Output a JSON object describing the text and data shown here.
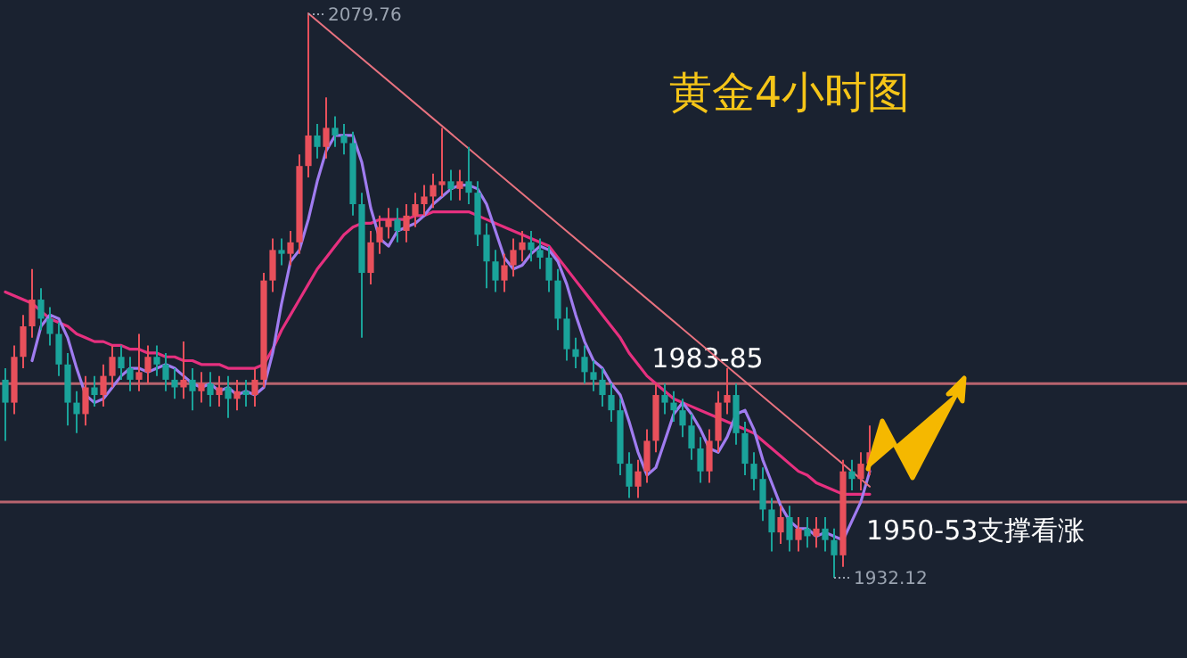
{
  "chart_data": {
    "type": "candlestick",
    "title": "黄金4小时图",
    "categories": [
      null,
      null,
      null,
      null,
      null,
      null,
      null,
      null,
      null,
      null,
      null,
      null,
      null,
      null,
      null,
      null,
      null,
      null,
      null,
      null,
      null,
      null,
      null,
      null,
      null,
      null,
      null,
      null,
      null,
      null,
      null,
      null,
      null,
      null,
      null,
      null,
      null,
      null,
      null,
      null,
      null,
      null,
      null,
      null,
      null,
      null,
      null,
      null,
      null,
      null,
      null,
      null,
      null,
      null,
      null,
      null,
      null,
      null,
      null,
      null,
      null,
      null,
      null,
      null,
      null,
      null,
      null,
      null,
      null,
      null,
      null,
      null,
      null,
      null,
      null,
      null,
      null,
      null,
      null,
      null,
      null,
      null,
      null,
      null,
      null,
      null,
      null,
      null,
      null,
      null,
      null,
      null,
      null,
      null,
      null,
      null,
      null,
      null
    ],
    "ohlc": [
      [
        1984,
        1987,
        1968,
        1978
      ],
      [
        1978,
        1993,
        1975,
        1990
      ],
      [
        1990,
        2001,
        1987,
        1998
      ],
      [
        1998,
        2013,
        1995,
        2005
      ],
      [
        2005,
        2008,
        1997,
        2000
      ],
      [
        2000,
        2003,
        1993,
        1996
      ],
      [
        1996,
        1999,
        1985,
        1988
      ],
      [
        1988,
        1991,
        1972,
        1978
      ],
      [
        1978,
        1981,
        1970,
        1975
      ],
      [
        1975,
        1985,
        1972,
        1982
      ],
      [
        1982,
        1985,
        1977,
        1980
      ],
      [
        1980,
        1988,
        1977,
        1985
      ],
      [
        1985,
        1993,
        1982,
        1990
      ],
      [
        1990,
        1993,
        1984,
        1987
      ],
      [
        1987,
        1990,
        1981,
        1984
      ],
      [
        1984,
        1996,
        1981,
        1986
      ],
      [
        1986,
        1993,
        1983,
        1990
      ],
      [
        1990,
        1993,
        1985,
        1988
      ],
      [
        1988,
        1991,
        1981,
        1984
      ],
      [
        1984,
        1987,
        1979,
        1982
      ],
      [
        1982,
        1994,
        1979,
        1984
      ],
      [
        1984,
        1987,
        1976,
        1981
      ],
      [
        1981,
        1986,
        1978,
        1983
      ],
      [
        1983,
        1986,
        1977,
        1980
      ],
      [
        1980,
        1985,
        1977,
        1982
      ],
      [
        1982,
        1985,
        1974,
        1979
      ],
      [
        1979,
        1984,
        1976,
        1981
      ],
      [
        1981,
        1984,
        1977,
        1980
      ],
      [
        1980,
        1987,
        1977,
        1984
      ],
      [
        1984,
        2012,
        1982,
        2010
      ],
      [
        2010,
        2021,
        2007,
        2018
      ],
      [
        2018,
        2021,
        2014,
        2017
      ],
      [
        2017,
        2023,
        2014,
        2020
      ],
      [
        2020,
        2043,
        2017,
        2040
      ],
      [
        2040,
        2079.76,
        2037,
        2048
      ],
      [
        2048,
        2051,
        2042,
        2045
      ],
      [
        2045,
        2058,
        2042,
        2050
      ],
      [
        2050,
        2053,
        2045,
        2048
      ],
      [
        2048,
        2051,
        2043,
        2046
      ],
      [
        2046,
        2049,
        2027,
        2030
      ],
      [
        2030,
        2033,
        1995,
        2012
      ],
      [
        2012,
        2023,
        2009,
        2020
      ],
      [
        2020,
        2027,
        2017,
        2024
      ],
      [
        2024,
        2029,
        2021,
        2026
      ],
      [
        2026,
        2029,
        2020,
        2023
      ],
      [
        2023,
        2030,
        2020,
        2027
      ],
      [
        2027,
        2033,
        2024,
        2030
      ],
      [
        2030,
        2035,
        2027,
        2032
      ],
      [
        2032,
        2038,
        2029,
        2035
      ],
      [
        2035,
        2050,
        2032,
        2036
      ],
      [
        2036,
        2039,
        2031,
        2034
      ],
      [
        2034,
        2039,
        2031,
        2036
      ],
      [
        2036,
        2045,
        2030,
        2033
      ],
      [
        2033,
        2036,
        2019,
        2022
      ],
      [
        2022,
        2025,
        2008,
        2015
      ],
      [
        2015,
        2018,
        2007,
        2010
      ],
      [
        2010,
        2017,
        2007,
        2014
      ],
      [
        2014,
        2021,
        2011,
        2018
      ],
      [
        2018,
        2023,
        2015,
        2020
      ],
      [
        2020,
        2023,
        2015,
        2018
      ],
      [
        2018,
        2021,
        2013,
        2016
      ],
      [
        2016,
        2019,
        2007,
        2010
      ],
      [
        2010,
        2013,
        1997,
        2000
      ],
      [
        2000,
        2003,
        1989,
        1992
      ],
      [
        1992,
        1995,
        1987,
        1990
      ],
      [
        1990,
        1993,
        1983,
        1986
      ],
      [
        1986,
        1989,
        1981,
        1984
      ],
      [
        1984,
        1987,
        1977,
        1980
      ],
      [
        1980,
        1983,
        1973,
        1976
      ],
      [
        1976,
        1979,
        1959,
        1962
      ],
      [
        1962,
        1965,
        1953,
        1956
      ],
      [
        1956,
        1963,
        1953,
        1960
      ],
      [
        1960,
        1971,
        1957,
        1968
      ],
      [
        1968,
        1983,
        1965,
        1980
      ],
      [
        1980,
        1983,
        1975,
        1978
      ],
      [
        1978,
        1981,
        1973,
        1976
      ],
      [
        1976,
        1979,
        1969,
        1972
      ],
      [
        1972,
        1975,
        1963,
        1966
      ],
      [
        1966,
        1969,
        1957,
        1960
      ],
      [
        1960,
        1971,
        1957,
        1968
      ],
      [
        1968,
        1981,
        1965,
        1978
      ],
      [
        1978,
        1987,
        1975,
        1980
      ],
      [
        1980,
        1983,
        1967,
        1970
      ],
      [
        1970,
        1973,
        1959,
        1962
      ],
      [
        1962,
        1965,
        1955,
        1958
      ],
      [
        1958,
        1961,
        1947,
        1950
      ],
      [
        1950,
        1953,
        1939,
        1944
      ],
      [
        1944,
        1951,
        1941,
        1948
      ],
      [
        1948,
        1951,
        1939,
        1942
      ],
      [
        1942,
        1948,
        1939,
        1945
      ],
      [
        1945,
        1948,
        1940,
        1943
      ],
      [
        1943,
        1948,
        1940,
        1945
      ],
      [
        1945,
        1948,
        1939,
        1942
      ],
      [
        1942,
        1945,
        1932.12,
        1938
      ],
      [
        1938,
        1963,
        1935,
        1960
      ],
      [
        1960,
        1963,
        1955,
        1958
      ],
      [
        1958,
        1965,
        1955,
        1962
      ],
      [
        1962,
        1972,
        1959,
        1965
      ]
    ],
    "colors": [
      "#1aa39a",
      "#e8505b",
      "#e8505b",
      "#e8505b",
      "#1aa39a",
      "#1aa39a",
      "#1aa39a",
      "#1aa39a",
      "#1aa39a",
      "#e8505b",
      "#1aa39a",
      "#e8505b",
      "#e8505b",
      "#1aa39a",
      "#1aa39a",
      "#e8505b",
      "#e8505b",
      "#1aa39a",
      "#1aa39a",
      "#1aa39a",
      "#e8505b",
      "#1aa39a",
      "#e8505b",
      "#1aa39a",
      "#e8505b",
      "#1aa39a",
      "#e8505b",
      "#1aa39a",
      "#e8505b",
      "#e8505b",
      "#e8505b",
      "#1aa39a",
      "#e8505b",
      "#e8505b",
      "#e8505b",
      "#1aa39a",
      "#e8505b",
      "#1aa39a",
      "#1aa39a",
      "#1aa39a",
      "#1aa39a",
      "#e8505b",
      "#e8505b",
      "#e8505b",
      "#1aa39a",
      "#e8505b",
      "#e8505b",
      "#e8505b",
      "#e8505b",
      "#e8505b",
      "#1aa39a",
      "#e8505b",
      "#1aa39a",
      "#1aa39a",
      "#1aa39a",
      "#1aa39a",
      "#e8505b",
      "#e8505b",
      "#e8505b",
      "#1aa39a",
      "#1aa39a",
      "#1aa39a",
      "#1aa39a",
      "#1aa39a",
      "#1aa39a",
      "#1aa39a",
      "#1aa39a",
      "#1aa39a",
      "#1aa39a",
      "#1aa39a",
      "#1aa39a",
      "#e8505b",
      "#e8505b",
      "#e8505b",
      "#1aa39a",
      "#1aa39a",
      "#1aa39a",
      "#1aa39a",
      "#1aa39a",
      "#e8505b",
      "#e8505b",
      "#e8505b",
      "#1aa39a",
      "#1aa39a",
      "#1aa39a",
      "#1aa39a",
      "#1aa39a",
      "#e8505b",
      "#1aa39a",
      "#e8505b",
      "#1aa39a",
      "#e8505b",
      "#1aa39a",
      "#1aa39a",
      "#e8505b",
      "#1aa39a",
      "#e8505b",
      "#e8505b"
    ],
    "series": [
      {
        "type": "line",
        "color": "#e6307f",
        "values": [
          2007,
          2006,
          2005,
          2004,
          2002,
          2000,
          1999,
          1998,
          1996,
          1995,
          1994,
          1994,
          1993,
          1993,
          1992,
          1992,
          1991,
          1991,
          1990,
          1990,
          1989,
          1989,
          1988,
          1988,
          1988,
          1987,
          1987,
          1987,
          1987,
          1988,
          1992,
          1997,
          2001,
          2005,
          2009,
          2013,
          2016,
          2019,
          2022,
          2024,
          2025,
          2025,
          2026,
          2026,
          2026,
          2026,
          2027,
          2027,
          2028,
          2028,
          2028,
          2028,
          2028,
          2027,
          2026,
          2025,
          2024,
          2023,
          2022,
          2021,
          2020,
          2019,
          2016,
          2013,
          2010,
          2007,
          2004,
          2001,
          1998,
          1995,
          1991,
          1988,
          1985,
          1983,
          1981,
          1979,
          1978,
          1977,
          1976,
          1975,
          1974,
          1973,
          1972,
          1971,
          1970,
          1968,
          1966,
          1964,
          1962,
          1960,
          1959,
          1957,
          1956,
          1955,
          1954,
          1954,
          1954,
          1954
        ]
      },
      {
        "type": "line",
        "color": "#a07cf0",
        "values": [
          null,
          null,
          null,
          1989,
          1998,
          2001,
          2000,
          1995,
          1987,
          1980,
          1978,
          1979,
          1982,
          1985,
          1987,
          1987,
          1986,
          1987,
          1988,
          1987,
          1985,
          1983,
          1982,
          1983,
          1981,
          1982,
          1980,
          1981,
          1980,
          1982,
          1991,
          2004,
          2015,
          2018,
          2026,
          2036,
          2044,
          2048,
          2048,
          2048,
          2041,
          2029,
          2021,
          2019,
          2023,
          2024,
          2025,
          2027,
          2030,
          2032,
          2034,
          2035,
          2035,
          2034,
          2030,
          2023,
          2016,
          2013,
          2014,
          2017,
          2019,
          2018,
          2015,
          2009,
          2001,
          1994,
          1989,
          1987,
          1983,
          1980,
          1973,
          1965,
          1959,
          1961,
          1968,
          1975,
          1978,
          1975,
          1971,
          1966,
          1965,
          1969,
          1975,
          1976,
          1971,
          1963,
          1957,
          1951,
          1947,
          1945,
          1945,
          1943,
          1944,
          1943,
          1942,
          1947,
          1952,
          1960
        ]
      },
      {
        "type": "line",
        "color": "#e8727f",
        "values": [
          null,
          null,
          null,
          null,
          null,
          null,
          null,
          null,
          null,
          null,
          null,
          null,
          null,
          null,
          null,
          null,
          null,
          null,
          null,
          null,
          null,
          null,
          null,
          null,
          null,
          null,
          null,
          null,
          null,
          null,
          null,
          null,
          null,
          null,
          2080,
          null,
          null,
          null,
          null,
          null,
          null,
          null,
          null,
          null,
          null,
          null,
          null,
          null,
          null,
          null,
          null,
          null,
          null,
          null,
          null,
          null,
          null,
          null,
          null,
          null,
          null,
          null,
          null,
          null,
          null,
          null,
          null,
          null,
          null,
          null,
          null,
          null,
          null,
          null,
          null,
          null,
          null,
          null,
          null,
          null,
          null,
          null,
          null,
          null,
          null,
          null,
          null,
          null,
          null,
          null,
          null,
          null,
          null,
          null,
          null,
          null,
          null,
          1956
        ]
      }
    ],
    "ref_lines": [
      {
        "axis": "y",
        "value": 1983,
        "label": "1983-85",
        "color": "#b8646e"
      },
      {
        "axis": "y",
        "value": 1952,
        "label": "1950-53支撑看涨",
        "color": "#b8646e"
      }
    ],
    "annotations": [
      "2079.76",
      "1932.12"
    ]
  }
}
